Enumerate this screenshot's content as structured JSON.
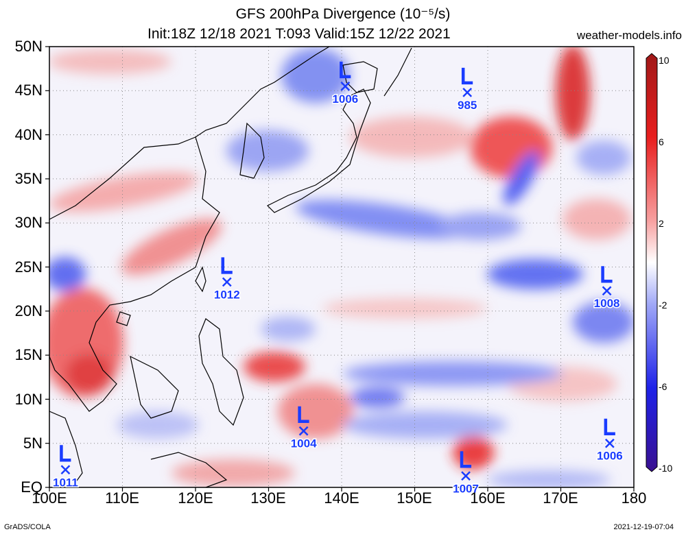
{
  "header": {
    "title": "GFS 200hPa Divergence (10⁻⁵/s)",
    "subtitle": "Init:18Z 12/18 2021 T:093 Valid:15Z 12/22 2021",
    "site": "weather-models.info"
  },
  "footer": {
    "left": "GrADS/COLA",
    "right": "2021-12-19-07:04"
  },
  "map": {
    "lat_ticks": [
      "50N",
      "45N",
      "40N",
      "35N",
      "30N",
      "25N",
      "20N",
      "15N",
      "10N",
      "5N",
      "EQ"
    ],
    "lon_ticks": [
      "100E",
      "110E",
      "120E",
      "130E",
      "140E",
      "150E",
      "160E",
      "170E",
      "180"
    ],
    "lat_range": [
      0,
      50
    ],
    "lon_range": [
      100,
      180
    ],
    "lows": [
      {
        "label": "1006",
        "lon": 140.5,
        "lat": 45.5
      },
      {
        "label": "985",
        "lon": 157.2,
        "lat": 44.8
      },
      {
        "label": "1012",
        "lon": 124.3,
        "lat": 23.3
      },
      {
        "label": "1008",
        "lon": 176.3,
        "lat": 22.3
      },
      {
        "label": "1004",
        "lon": 134.8,
        "lat": 6.4
      },
      {
        "label": "1006",
        "lon": 176.7,
        "lat": 5.0
      },
      {
        "label": "1011",
        "lon": 102.2,
        "lat": 2.0
      },
      {
        "label": "1007",
        "lon": 157.0,
        "lat": 1.3
      }
    ],
    "colors": {
      "positive": "#e8212a",
      "negative": "#2a3ef0",
      "neutral": "#ffffff",
      "low_marker": "#1a3cff"
    }
  },
  "colorbar": {
    "labels": [
      "10",
      "6",
      "2",
      "-2",
      "-6",
      "-10"
    ],
    "values": [
      10,
      6,
      2,
      -2,
      -6,
      -10
    ]
  }
}
